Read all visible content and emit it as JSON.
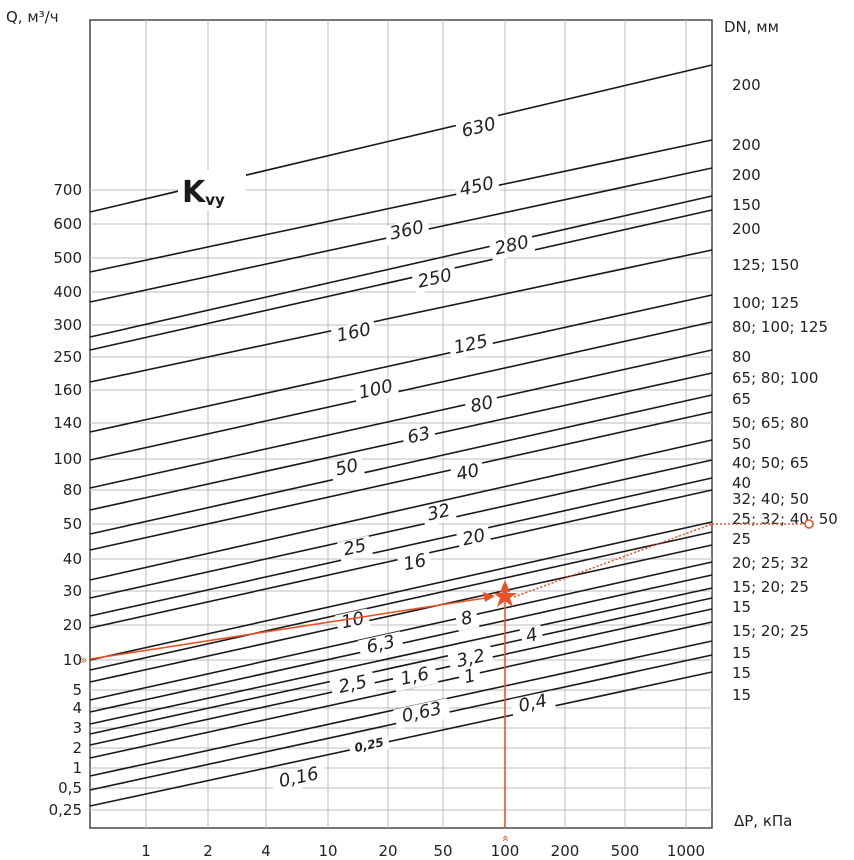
{
  "chart_data": {
    "type": "line",
    "title": "",
    "y_axis_label": "Q, м³/ч",
    "x_axis_label": "ΔP, кПа",
    "dn_axis_label": "DN, мм",
    "kvs_label_main": "K",
    "kvs_label_sub": "vy",
    "y_ticks": [
      "0,25",
      "0,5",
      "1",
      "2",
      "3",
      "4",
      "5",
      "10",
      "20",
      "30",
      "40",
      "50",
      "80",
      "100",
      "140",
      "160",
      "250",
      "300",
      "400",
      "500",
      "600",
      "700"
    ],
    "x_ticks": [
      "1",
      "2",
      "4",
      "10",
      "20",
      "50",
      "100",
      "200",
      "500",
      "1000"
    ],
    "series": [
      {
        "name": "630",
        "label": "630"
      },
      {
        "name": "450",
        "label": "450"
      },
      {
        "name": "360",
        "label": "360"
      },
      {
        "name": "280",
        "label": "280"
      },
      {
        "name": "250",
        "label": "250"
      },
      {
        "name": "160",
        "label": "160"
      },
      {
        "name": "125",
        "label": "125"
      },
      {
        "name": "100",
        "label": "100"
      },
      {
        "name": "80",
        "label": "80"
      },
      {
        "name": "63",
        "label": "63"
      },
      {
        "name": "50",
        "label": "50"
      },
      {
        "name": "40",
        "label": "40"
      },
      {
        "name": "32",
        "label": "32"
      },
      {
        "name": "25",
        "label": "25"
      },
      {
        "name": "20",
        "label": "20"
      },
      {
        "name": "16",
        "label": "16"
      },
      {
        "name": "10",
        "label": "10"
      },
      {
        "name": "8",
        "label": "8"
      },
      {
        "name": "6,3",
        "label": "6,3"
      },
      {
        "name": "4",
        "label": "4"
      },
      {
        "name": "3,2",
        "label": "3,2"
      },
      {
        "name": "2,5",
        "label": "2,5"
      },
      {
        "name": "1,6",
        "label": "1,6"
      },
      {
        "name": "1",
        "label": "1"
      },
      {
        "name": "0,63",
        "label": "0,63"
      },
      {
        "name": "0,4",
        "label": "0,4"
      },
      {
        "name": "0,25",
        "label": "0,25"
      },
      {
        "name": "0,16",
        "label": "0,16"
      }
    ],
    "dn_labels": [
      "200",
      "200",
      "200",
      "150",
      "200",
      "125;  150",
      "100;  125",
      "80;  100;  125",
      "80",
      "65;  80;  100",
      "65",
      "50;  65;  80",
      "50",
      "40;  50;  65",
      "40",
      "32;  40;  50",
      "25;  32;  40;  50",
      "25",
      "20;  25; 32",
      "15;  20; 25",
      "15",
      "15;  20; 25",
      "15",
      "15",
      "15"
    ],
    "example": {
      "delta_p_kpa": 100,
      "flow_m3h": 10,
      "kvs_result": 8
    }
  },
  "colors": {
    "accent": "#e8532a",
    "line": "#1a1a1a",
    "grid": "#bdbdbd"
  }
}
